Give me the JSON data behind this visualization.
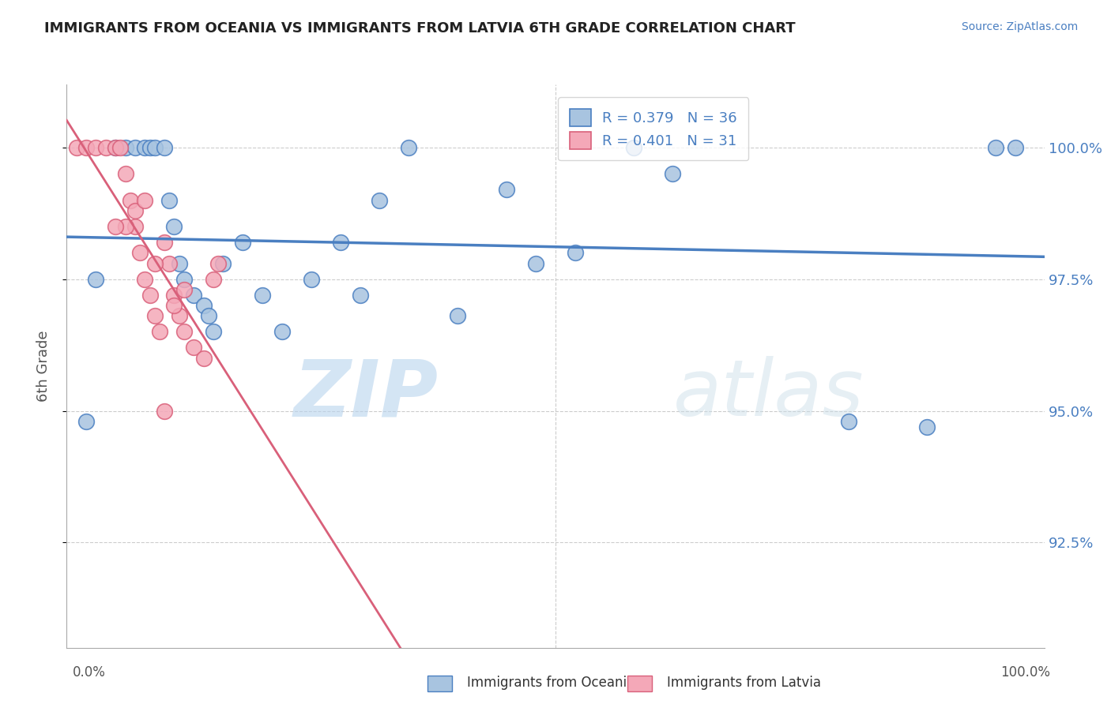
{
  "title": "IMMIGRANTS FROM OCEANIA VS IMMIGRANTS FROM LATVIA 6TH GRADE CORRELATION CHART",
  "source": "Source: ZipAtlas.com",
  "ylabel": "6th Grade",
  "xlim": [
    0.0,
    1.0
  ],
  "ylim": [
    90.5,
    101.2
  ],
  "legend_blue_label": "Immigrants from Oceania",
  "legend_pink_label": "Immigrants from Latvia",
  "R_blue": 0.379,
  "N_blue": 36,
  "R_pink": 0.401,
  "N_pink": 31,
  "blue_color": "#a8c4e0",
  "pink_color": "#f4a8b8",
  "blue_line_color": "#4a7fc1",
  "pink_line_color": "#d9607a",
  "watermark_zip": "ZIP",
  "watermark_atlas": "atlas",
  "blue_scatter_x": [
    0.02,
    0.03,
    0.05,
    0.06,
    0.07,
    0.08,
    0.085,
    0.09,
    0.1,
    0.105,
    0.11,
    0.115,
    0.12,
    0.13,
    0.14,
    0.145,
    0.15,
    0.16,
    0.18,
    0.2,
    0.22,
    0.25,
    0.28,
    0.3,
    0.32,
    0.35,
    0.4,
    0.45,
    0.48,
    0.52,
    0.58,
    0.62,
    0.8,
    0.88,
    0.95,
    0.97
  ],
  "blue_scatter_y": [
    94.8,
    97.5,
    100.0,
    100.0,
    100.0,
    100.0,
    100.0,
    100.0,
    100.0,
    99.0,
    98.5,
    97.8,
    97.5,
    97.2,
    97.0,
    96.8,
    96.5,
    97.8,
    98.2,
    97.2,
    96.5,
    97.5,
    98.2,
    97.2,
    99.0,
    100.0,
    96.8,
    99.2,
    97.8,
    98.0,
    100.0,
    99.5,
    94.8,
    94.7,
    100.0,
    100.0
  ],
  "pink_scatter_x": [
    0.01,
    0.02,
    0.03,
    0.04,
    0.05,
    0.055,
    0.06,
    0.065,
    0.07,
    0.075,
    0.08,
    0.085,
    0.09,
    0.095,
    0.1,
    0.105,
    0.11,
    0.115,
    0.12,
    0.13,
    0.14,
    0.15,
    0.155,
    0.06,
    0.07,
    0.08,
    0.09,
    0.1,
    0.11,
    0.12,
    0.05
  ],
  "pink_scatter_y": [
    100.0,
    100.0,
    100.0,
    100.0,
    100.0,
    100.0,
    99.5,
    99.0,
    98.5,
    98.0,
    97.5,
    97.2,
    96.8,
    96.5,
    98.2,
    97.8,
    97.2,
    96.8,
    96.5,
    96.2,
    96.0,
    97.5,
    97.8,
    98.5,
    98.8,
    99.0,
    97.8,
    95.0,
    97.0,
    97.3,
    98.5
  ],
  "yticks": [
    92.5,
    95.0,
    97.5,
    100.0
  ],
  "ytick_labels": [
    "92.5%",
    "95.0%",
    "97.5%",
    "100.0%"
  ]
}
